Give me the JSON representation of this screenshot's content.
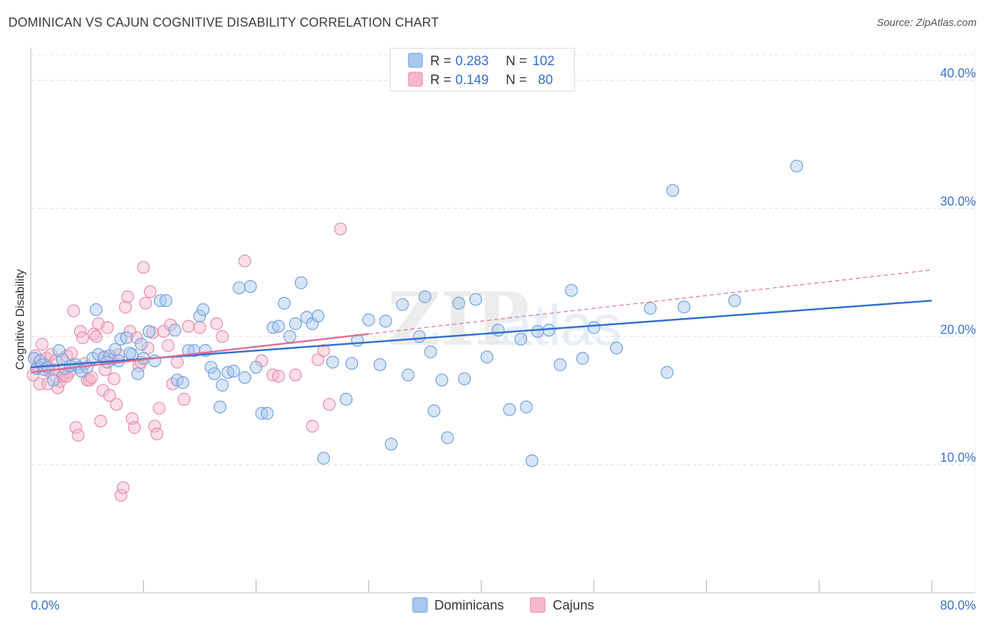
{
  "title": "DOMINICAN VS CAJUN COGNITIVE DISABILITY CORRELATION CHART",
  "source": "Source: ZipAtlas.com",
  "watermark": {
    "part1": "ZIP",
    "part2": "atlas"
  },
  "colors": {
    "dominicans_fill": "#a8c6ee",
    "dominicans_stroke": "#6f9fdc",
    "dominicans_line": "#2f6fd0",
    "cajuns_fill": "#f5b8cb",
    "cajuns_stroke": "#e88aa8",
    "cajuns_line": "#e06d94",
    "axis_label_blue": "#3a72c8",
    "grid": "#dddddd"
  },
  "legend_top": [
    {
      "swatch": "dominicans",
      "r_label": "R = ",
      "r_value": "0.283",
      "n_label": "N = ",
      "n_value": "102"
    },
    {
      "swatch": "cajuns",
      "r_label": "R = ",
      "r_value": "0.149",
      "n_label": "N = ",
      "n_value": "80"
    }
  ],
  "legend_bottom": [
    {
      "swatch": "dominicans",
      "label": "Dominicans"
    },
    {
      "swatch": "cajuns",
      "label": "Cajuns"
    }
  ],
  "chart_data": {
    "type": "scatter",
    "title": "DOMINICAN VS CAJUN COGNITIVE DISABILITY CORRELATION CHART",
    "xlabel": "",
    "ylabel": "Cognitive Disability",
    "xlim": [
      0,
      80
    ],
    "ylim": [
      0,
      42
    ],
    "x_tick_labels": [
      "0.0%",
      "80.0%"
    ],
    "y_ticks": [
      10,
      20,
      30,
      40
    ],
    "y_tick_labels": [
      "10.0%",
      "20.0%",
      "30.0%",
      "40.0%"
    ],
    "grid": true,
    "legend_position": "top-center",
    "series": [
      {
        "name": "Dominicans",
        "r": 0.283,
        "n": 102,
        "trend": {
          "x0": 0,
          "y0": 17.6,
          "x1": 80,
          "y1": 22.8,
          "style": "solid"
        },
        "points": [
          [
            0.3,
            18.3
          ],
          [
            0.5,
            17.5
          ],
          [
            0.8,
            18.1
          ],
          [
            1.0,
            17.8
          ],
          [
            1.2,
            17.4
          ],
          [
            1.5,
            17.6
          ],
          [
            2.0,
            16.6
          ],
          [
            2.5,
            18.9
          ],
          [
            3.0,
            17.5
          ],
          [
            3.5,
            17.7
          ],
          [
            4.0,
            17.8
          ],
          [
            4.3,
            17.6
          ],
          [
            4.5,
            17.3
          ],
          [
            5.0,
            17.6
          ],
          [
            5.5,
            18.3
          ],
          [
            5.8,
            22.1
          ],
          [
            6.0,
            18.6
          ],
          [
            6.5,
            18.4
          ],
          [
            7.0,
            18.5
          ],
          [
            7.5,
            19.0
          ],
          [
            7.8,
            18.1
          ],
          [
            8.0,
            19.8
          ],
          [
            8.5,
            19.9
          ],
          [
            9.0,
            18.6
          ],
          [
            9.5,
            17.1
          ],
          [
            9.8,
            19.4
          ],
          [
            10.0,
            18.3
          ],
          [
            10.5,
            20.4
          ],
          [
            11.0,
            18.1
          ],
          [
            11.5,
            22.8
          ],
          [
            12.0,
            22.8
          ],
          [
            12.8,
            20.5
          ],
          [
            13.0,
            16.6
          ],
          [
            13.5,
            16.4
          ],
          [
            14.0,
            18.9
          ],
          [
            14.5,
            18.9
          ],
          [
            15.0,
            21.6
          ],
          [
            15.3,
            22.1
          ],
          [
            15.5,
            18.9
          ],
          [
            16.0,
            17.6
          ],
          [
            16.3,
            17.1
          ],
          [
            16.8,
            14.5
          ],
          [
            17.0,
            16.2
          ],
          [
            17.5,
            17.2
          ],
          [
            18.0,
            17.3
          ],
          [
            18.5,
            23.8
          ],
          [
            19.0,
            16.8
          ],
          [
            19.5,
            23.9
          ],
          [
            20.0,
            17.6
          ],
          [
            20.5,
            14.0
          ],
          [
            21.0,
            14.0
          ],
          [
            21.5,
            20.7
          ],
          [
            22.0,
            20.8
          ],
          [
            22.5,
            22.6
          ],
          [
            23.0,
            20.0
          ],
          [
            23.5,
            21.0
          ],
          [
            24.0,
            24.2
          ],
          [
            24.5,
            21.5
          ],
          [
            25.0,
            21.0
          ],
          [
            25.5,
            21.6
          ],
          [
            26.0,
            10.5
          ],
          [
            26.8,
            18.0
          ],
          [
            28.0,
            15.1
          ],
          [
            28.5,
            17.9
          ],
          [
            29.0,
            19.7
          ],
          [
            30.0,
            21.3
          ],
          [
            31.0,
            17.8
          ],
          [
            31.5,
            21.2
          ],
          [
            32.0,
            11.6
          ],
          [
            33.0,
            22.5
          ],
          [
            33.5,
            17.0
          ],
          [
            34.5,
            20.0
          ],
          [
            35.0,
            23.1
          ],
          [
            35.5,
            18.8
          ],
          [
            35.8,
            14.2
          ],
          [
            36.5,
            16.6
          ],
          [
            37.0,
            12.1
          ],
          [
            38.0,
            22.6
          ],
          [
            38.5,
            16.7
          ],
          [
            39.5,
            22.9
          ],
          [
            40.5,
            18.4
          ],
          [
            41.5,
            20.5
          ],
          [
            42.5,
            14.3
          ],
          [
            43.5,
            19.8
          ],
          [
            44.0,
            14.5
          ],
          [
            44.5,
            10.3
          ],
          [
            45.0,
            20.4
          ],
          [
            46.0,
            20.5
          ],
          [
            47.0,
            17.8
          ],
          [
            48.0,
            23.6
          ],
          [
            49.0,
            18.3
          ],
          [
            50.0,
            20.7
          ],
          [
            52.0,
            19.1
          ],
          [
            55.0,
            22.2
          ],
          [
            56.5,
            17.2
          ],
          [
            57.0,
            31.4
          ],
          [
            58.0,
            22.3
          ],
          [
            62.5,
            22.8
          ],
          [
            68.0,
            33.3
          ],
          [
            2.8,
            18.2
          ],
          [
            6.8,
            18.0
          ],
          [
            8.8,
            18.7
          ]
        ]
      },
      {
        "name": "Cajuns",
        "r": 0.149,
        "n": 80,
        "trend": {
          "x0": 0,
          "y0": 17.2,
          "x1": 30,
          "y1": 20.2,
          "style": "solid",
          "dashed_to": {
            "x": 80,
            "y": 25.2
          }
        },
        "points": [
          [
            0.2,
            17.0
          ],
          [
            0.4,
            18.5
          ],
          [
            0.6,
            17.6
          ],
          [
            0.8,
            16.3
          ],
          [
            1.0,
            19.4
          ],
          [
            1.2,
            17.8
          ],
          [
            1.4,
            18.3
          ],
          [
            1.6,
            17.3
          ],
          [
            1.8,
            18.6
          ],
          [
            2.0,
            17.4
          ],
          [
            2.2,
            18.1
          ],
          [
            2.4,
            16.0
          ],
          [
            2.6,
            16.5
          ],
          [
            2.8,
            16.9
          ],
          [
            3.0,
            17.0
          ],
          [
            3.2,
            18.5
          ],
          [
            3.4,
            17.2
          ],
          [
            3.6,
            18.7
          ],
          [
            3.8,
            22.0
          ],
          [
            4.0,
            12.9
          ],
          [
            4.2,
            12.3
          ],
          [
            4.4,
            20.4
          ],
          [
            4.6,
            19.9
          ],
          [
            4.8,
            17.9
          ],
          [
            5.0,
            16.6
          ],
          [
            5.2,
            16.6
          ],
          [
            5.4,
            16.8
          ],
          [
            5.6,
            20.2
          ],
          [
            5.8,
            20.0
          ],
          [
            6.0,
            21.0
          ],
          [
            6.2,
            13.4
          ],
          [
            6.4,
            15.8
          ],
          [
            6.6,
            17.4
          ],
          [
            6.8,
            20.7
          ],
          [
            7.0,
            15.4
          ],
          [
            7.2,
            18.2
          ],
          [
            7.4,
            16.7
          ],
          [
            7.6,
            14.7
          ],
          [
            7.8,
            18.6
          ],
          [
            8.0,
            7.6
          ],
          [
            8.2,
            8.2
          ],
          [
            8.4,
            22.3
          ],
          [
            8.6,
            23.1
          ],
          [
            8.8,
            20.4
          ],
          [
            9.0,
            13.6
          ],
          [
            9.2,
            12.9
          ],
          [
            9.4,
            19.9
          ],
          [
            9.6,
            17.7
          ],
          [
            9.8,
            18.0
          ],
          [
            10.0,
            25.4
          ],
          [
            10.2,
            22.6
          ],
          [
            10.4,
            19.1
          ],
          [
            10.6,
            23.5
          ],
          [
            10.8,
            20.3
          ],
          [
            11.0,
            13.0
          ],
          [
            11.2,
            12.4
          ],
          [
            11.4,
            14.4
          ],
          [
            11.8,
            20.4
          ],
          [
            12.2,
            19.3
          ],
          [
            12.4,
            20.9
          ],
          [
            12.6,
            16.3
          ],
          [
            13.0,
            18.0
          ],
          [
            13.6,
            15.1
          ],
          [
            14.0,
            20.8
          ],
          [
            15.0,
            20.7
          ],
          [
            16.5,
            21.0
          ],
          [
            17.0,
            20.0
          ],
          [
            19.0,
            25.9
          ],
          [
            20.5,
            18.1
          ],
          [
            21.5,
            17.0
          ],
          [
            22.0,
            16.9
          ],
          [
            23.5,
            17.0
          ],
          [
            25.0,
            13.0
          ],
          [
            26.5,
            14.7
          ],
          [
            25.5,
            18.2
          ],
          [
            26.0,
            18.9
          ],
          [
            27.5,
            28.4
          ],
          [
            1.5,
            16.3
          ],
          [
            3.2,
            16.9
          ],
          [
            6.5,
            18.3
          ]
        ]
      }
    ]
  }
}
